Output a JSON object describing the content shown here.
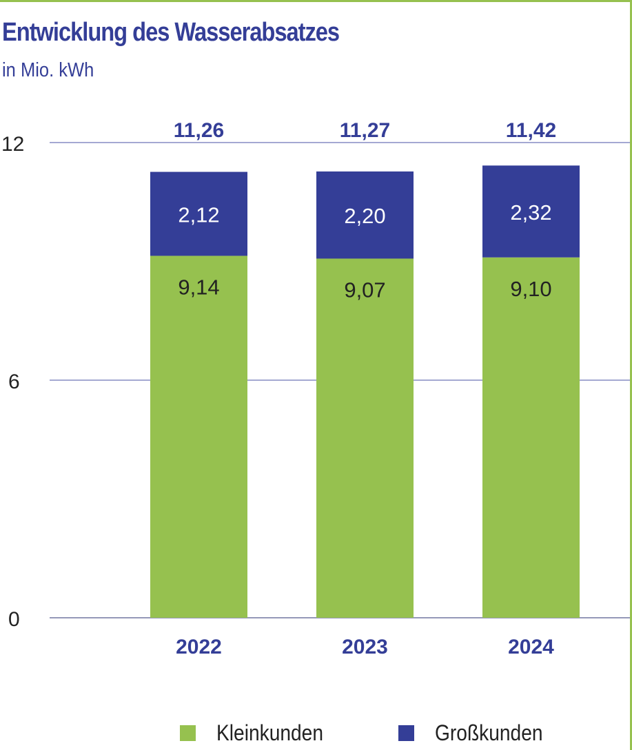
{
  "title": "Entwicklung des Wasserabsatzes",
  "subtitle": "in Mio. kWh",
  "colors": {
    "kleinkunden": "#96c14f",
    "grosskunden": "#343e97",
    "grid": "#6e74b8",
    "frame": "#96c14f",
    "total_text": "#343e97",
    "category_text": "#343e97"
  },
  "chart_data": {
    "type": "bar",
    "stacked": true,
    "categories": [
      "2022",
      "2023",
      "2024"
    ],
    "series": [
      {
        "name": "Kleinkunden",
        "values": [
          9.14,
          9.07,
          9.1
        ],
        "labels": [
          "9,14",
          "9,07",
          "9,10"
        ]
      },
      {
        "name": "Großkunden",
        "values": [
          2.12,
          2.2,
          2.32
        ],
        "labels": [
          "2,12",
          "2,20",
          "2,32"
        ]
      }
    ],
    "totals": [
      11.26,
      11.27,
      11.42
    ],
    "total_labels": [
      "11,26",
      "11,27",
      "11,42"
    ],
    "ylim": [
      0,
      12
    ],
    "yticks": [
      0,
      6,
      12
    ],
    "grid": true,
    "legend_position": "bottom"
  }
}
